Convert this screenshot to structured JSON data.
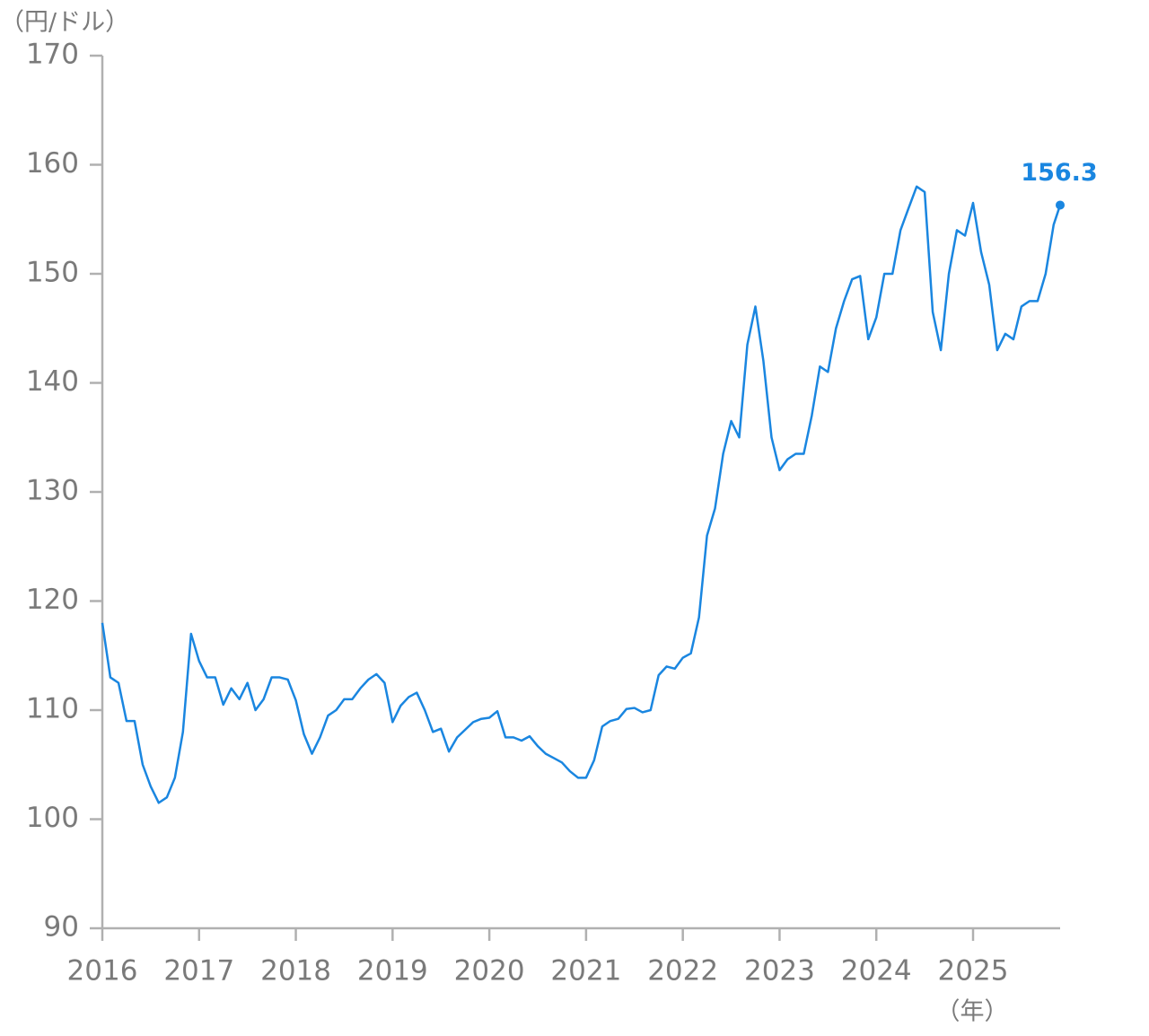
{
  "chart_data": {
    "type": "line",
    "y_label": "（円/ドル）",
    "x_label": "（年）",
    "color": "#1a86e0",
    "x": [
      2016.0,
      2016.083,
      2016.167,
      2016.25,
      2016.333,
      2016.417,
      2016.5,
      2016.583,
      2016.667,
      2016.75,
      2016.833,
      2016.917,
      2017.0,
      2017.083,
      2017.167,
      2017.25,
      2017.333,
      2017.417,
      2017.5,
      2017.583,
      2017.667,
      2017.75,
      2017.833,
      2017.917,
      2018.0,
      2018.083,
      2018.167,
      2018.25,
      2018.333,
      2018.417,
      2018.5,
      2018.583,
      2018.667,
      2018.75,
      2018.833,
      2018.917,
      2019.0,
      2019.083,
      2019.167,
      2019.25,
      2019.333,
      2019.417,
      2019.5,
      2019.583,
      2019.667,
      2019.75,
      2019.833,
      2019.917,
      2020.0,
      2020.083,
      2020.167,
      2020.25,
      2020.333,
      2020.417,
      2020.5,
      2020.583,
      2020.667,
      2020.75,
      2020.833,
      2020.917,
      2021.0,
      2021.083,
      2021.167,
      2021.25,
      2021.333,
      2021.417,
      2021.5,
      2021.583,
      2021.667,
      2021.75,
      2021.833,
      2021.917,
      2022.0,
      2022.083,
      2022.167,
      2022.25,
      2022.333,
      2022.417,
      2022.5,
      2022.583,
      2022.667,
      2022.75,
      2022.833,
      2022.917,
      2023.0,
      2023.083,
      2023.167,
      2023.25,
      2023.333,
      2023.417,
      2023.5,
      2023.583,
      2023.667,
      2023.75,
      2023.833,
      2023.917,
      2024.0,
      2024.083,
      2024.167,
      2024.25,
      2024.333,
      2024.417,
      2024.5,
      2024.583,
      2024.667,
      2024.75,
      2024.833,
      2024.917,
      2025.0,
      2025.083,
      2025.167,
      2025.25,
      2025.333,
      2025.417,
      2025.5,
      2025.583,
      2025.667,
      2025.75,
      2025.833,
      2025.9
    ],
    "values": [
      118,
      113,
      112.5,
      109,
      109,
      105,
      103,
      101.5,
      102,
      103.8,
      108,
      117,
      114.5,
      113,
      113,
      110.5,
      112,
      111,
      112.5,
      110,
      111,
      113,
      113,
      112.8,
      110.9,
      107.8,
      106,
      107.5,
      109.5,
      110,
      111,
      111,
      112,
      112.8,
      113.3,
      112.5,
      108.9,
      110.4,
      111.2,
      111.6,
      110,
      108,
      108.3,
      106.2,
      107.5,
      108.2,
      108.9,
      109.2,
      109.3,
      109.9,
      107.5,
      107.5,
      107.2,
      107.6,
      106.7,
      106,
      105.6,
      105.2,
      104.4,
      103.8,
      103.8,
      105.4,
      108.5,
      109,
      109.2,
      110.1,
      110.2,
      109.8,
      110,
      113.2,
      114,
      113.8,
      114.8,
      115.2,
      118.5,
      126,
      128.5,
      133.5,
      136.5,
      135,
      143.5,
      147,
      142,
      135,
      132,
      133,
      133.5,
      133.5,
      137,
      141.5,
      141,
      145,
      147.5,
      149.5,
      149.8,
      144,
      146,
      150,
      150,
      154,
      156,
      158,
      157.5,
      146.5,
      143,
      150,
      154,
      153.5,
      156.5,
      152,
      149,
      143,
      144.5,
      144,
      147,
      147.5,
      147.5,
      150,
      154.5,
      156.3
    ],
    "xlim": [
      2016,
      2025.9
    ],
    "xticks": [
      2016,
      2017,
      2018,
      2019,
      2020,
      2021,
      2022,
      2023,
      2024,
      2025
    ],
    "ylim": [
      90,
      170
    ],
    "yticks": [
      90,
      100,
      110,
      120,
      130,
      140,
      150,
      160,
      170
    ]
  }
}
